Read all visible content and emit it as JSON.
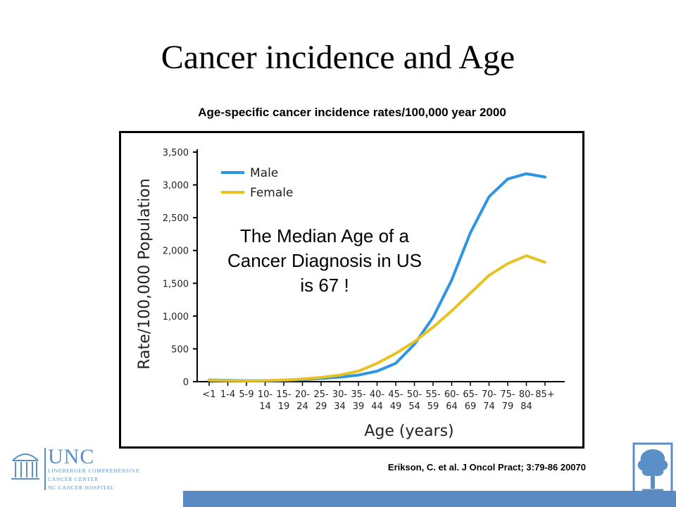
{
  "slide": {
    "title": "Cancer incidence and Age",
    "caption": "Age-specific cancer incidence rates/100,000  year 2000",
    "annotation_lines": [
      "The Median Age of a",
      "Cancer Diagnosis in US",
      "is 67 !"
    ],
    "citation": "Erikson, C. et al. J Oncol Pract; 3:79-86 20070"
  },
  "logo": {
    "name": "UNC",
    "lines": [
      "LINEBERGER COMPREHENSIVE",
      "CANCER CENTER",
      "NC CANCER HOSPITAL"
    ]
  },
  "colors": {
    "male": "#2d95e4",
    "female": "#e8c223",
    "axis": "#000000",
    "footer_bar": "#5b8ac2",
    "logo_blue": "#5a8fc7"
  },
  "chart_data": {
    "type": "line",
    "xlabel": "Age (years)",
    "ylabel": "Rate/100,000 Population",
    "ylim": [
      0,
      3500
    ],
    "yticks": [
      0,
      500,
      1000,
      1500,
      2000,
      2500,
      3000,
      3500
    ],
    "ytick_labels": [
      "0",
      "500",
      "1,000",
      "1,500",
      "2,000",
      "2,500",
      "3,000",
      "3,500"
    ],
    "categories": [
      "<1",
      "1-4",
      "5-9",
      "10-14",
      "15-19",
      "20-24",
      "25-29",
      "30-34",
      "35-39",
      "40-44",
      "45-49",
      "50-54",
      "55-59",
      "60-64",
      "65-69",
      "70-74",
      "75-79",
      "80-84",
      "85+"
    ],
    "category_labels": [
      [
        "<1"
      ],
      [
        "1-4"
      ],
      [
        "5-9"
      ],
      [
        "10-",
        "14"
      ],
      [
        "15-",
        "19"
      ],
      [
        "20-",
        "24"
      ],
      [
        "25-",
        "29"
      ],
      [
        "30-",
        "34"
      ],
      [
        "35-",
        "39"
      ],
      [
        "40-",
        "44"
      ],
      [
        "45-",
        "49"
      ],
      [
        "50-",
        "54"
      ],
      [
        "55-",
        "59"
      ],
      [
        "60-",
        "64"
      ],
      [
        "65-",
        "69"
      ],
      [
        "70-",
        "74"
      ],
      [
        "75-",
        "79"
      ],
      [
        "80-",
        "84"
      ],
      [
        "85+"
      ]
    ],
    "legend_position": "top-left",
    "grid": false,
    "series": [
      {
        "name": "Male",
        "values": [
          25,
          20,
          15,
          15,
          20,
          30,
          50,
          70,
          100,
          160,
          280,
          570,
          980,
          1550,
          2270,
          2820,
          3090,
          3170,
          3120
        ]
      },
      {
        "name": "Female",
        "values": [
          20,
          15,
          12,
          15,
          25,
          40,
          65,
          100,
          160,
          280,
          430,
          610,
          830,
          1080,
          1350,
          1620,
          1800,
          1920,
          1820
        ]
      }
    ]
  }
}
